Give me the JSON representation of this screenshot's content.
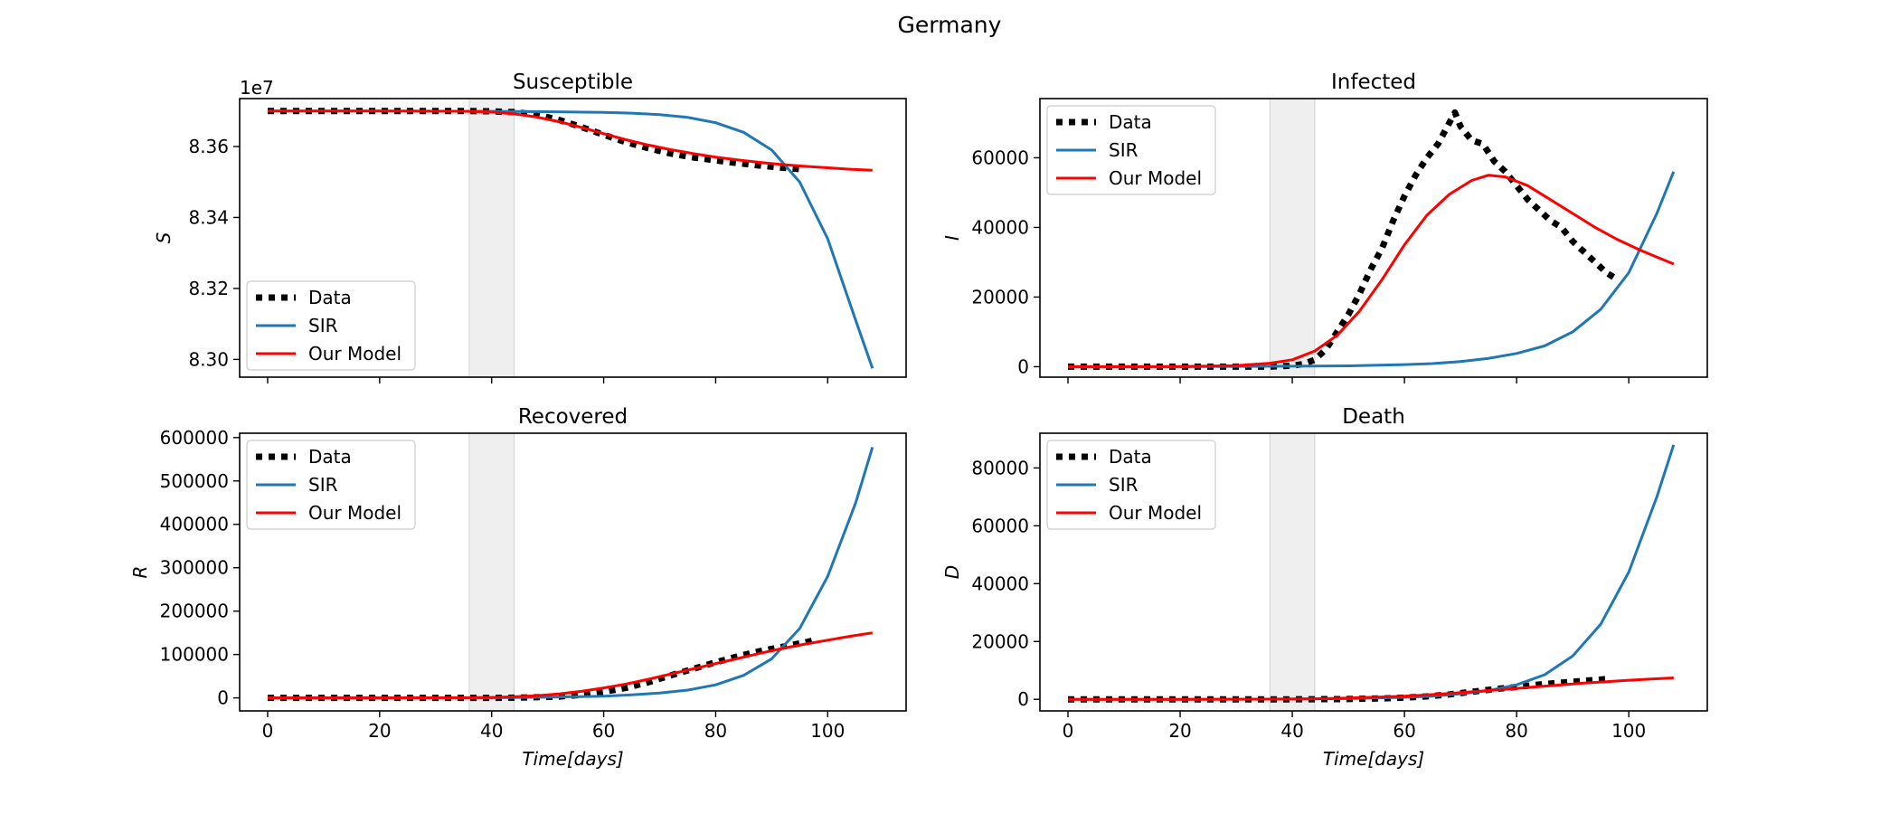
{
  "figure": {
    "title": "Germany"
  },
  "colors": {
    "data": "#000000",
    "sir": "#1f77b4",
    "model": "#ff0000",
    "shade": "#e8e8e8"
  },
  "shaded_region": {
    "x": [
      36,
      44
    ]
  },
  "chart_data": [
    {
      "type": "line",
      "title": "Susceptible",
      "xlabel": "",
      "ylabel": "S",
      "y_offset_label": "1e7",
      "xlim": [
        -5,
        114
      ],
      "ylim": [
        82950000,
        83735000
      ],
      "xticks": [
        0,
        20,
        40,
        60,
        80,
        100
      ],
      "show_xticklabels": false,
      "yticks": [
        83000000,
        83200000,
        83400000,
        83600000
      ],
      "ytick_labels": [
        "8.30",
        "8.32",
        "8.34",
        "8.36"
      ],
      "legend": "lower-left",
      "series": [
        {
          "name": "Data",
          "style": "dotted",
          "color": "black",
          "x": [
            0,
            20,
            36,
            40,
            44,
            48,
            52,
            56,
            60,
            64,
            68,
            72,
            76,
            80,
            84,
            88,
            92,
            96
          ],
          "y": [
            83700000,
            83700000,
            83700000,
            83699000,
            83697000,
            83690000,
            83675000,
            83655000,
            83633000,
            83612000,
            83595000,
            83580000,
            83569000,
            83561000,
            83553000,
            83546000,
            83540000,
            83535000
          ]
        },
        {
          "name": "SIR",
          "style": "solid",
          "color": "sir",
          "x": [
            0,
            20,
            40,
            50,
            60,
            65,
            70,
            75,
            80,
            85,
            90,
            95,
            100,
            105,
            108
          ],
          "y": [
            83700000,
            83700000,
            83699000,
            83698000,
            83696000,
            83694000,
            83690000,
            83682000,
            83667000,
            83640000,
            83590000,
            83500000,
            83340000,
            83110000,
            82975000
          ]
        },
        {
          "name": "Our Model",
          "style": "solid",
          "color": "model",
          "x": [
            0,
            20,
            36,
            40,
            44,
            48,
            52,
            56,
            60,
            64,
            68,
            72,
            76,
            80,
            84,
            88,
            92,
            96,
            100,
            104,
            108
          ],
          "y": [
            83700000,
            83700000,
            83699000,
            83697000,
            83692000,
            83683000,
            83670000,
            83654000,
            83636000,
            83619000,
            83604000,
            83591000,
            83580000,
            83570000,
            83562000,
            83555000,
            83549000,
            83544000,
            83540000,
            83536000,
            83533000
          ]
        }
      ]
    },
    {
      "type": "line",
      "title": "Infected",
      "xlabel": "",
      "ylabel": "I",
      "xlim": [
        -5,
        114
      ],
      "ylim": [
        -3000,
        77000
      ],
      "xticks": [
        0,
        20,
        40,
        60,
        80,
        100
      ],
      "show_xticklabels": false,
      "yticks": [
        0,
        20000,
        40000,
        60000
      ],
      "ytick_labels": [
        "0",
        "20000",
        "40000",
        "60000"
      ],
      "legend": "upper-left",
      "series": [
        {
          "name": "Data",
          "style": "dotted",
          "color": "black",
          "x": [
            0,
            20,
            36,
            40,
            42,
            44,
            46,
            48,
            50,
            52,
            54,
            56,
            58,
            60,
            62,
            64,
            66,
            68,
            69,
            70,
            72,
            74,
            76,
            78,
            80,
            82,
            84,
            86,
            88,
            90,
            92,
            94,
            96,
            98
          ],
          "y": [
            0,
            0,
            0,
            300,
            800,
            2000,
            5000,
            10000,
            15000,
            21000,
            28000,
            34000,
            42000,
            49000,
            55000,
            60000,
            64000,
            70000,
            73000,
            69000,
            65000,
            64000,
            59000,
            56000,
            52000,
            48000,
            45000,
            42000,
            40000,
            36000,
            33000,
            30000,
            27000,
            25000
          ]
        },
        {
          "name": "SIR",
          "style": "solid",
          "color": "sir",
          "x": [
            0,
            20,
            40,
            50,
            60,
            65,
            70,
            75,
            80,
            85,
            90,
            95,
            100,
            105,
            108
          ],
          "y": [
            0,
            0,
            150,
            250,
            600,
            900,
            1500,
            2400,
            3800,
            6000,
            10000,
            16500,
            27000,
            44000,
            56000
          ]
        },
        {
          "name": "Our Model",
          "style": "solid",
          "color": "model",
          "x": [
            0,
            20,
            30,
            36,
            40,
            44,
            48,
            52,
            56,
            60,
            64,
            68,
            72,
            75,
            78,
            82,
            86,
            90,
            94,
            98,
            102,
            105,
            108
          ],
          "y": [
            0,
            50,
            300,
            1000,
            2000,
            4500,
            9000,
            16000,
            25000,
            35000,
            43500,
            49500,
            53500,
            55000,
            54500,
            52000,
            48000,
            44000,
            40000,
            36500,
            33500,
            31500,
            29500
          ]
        }
      ]
    },
    {
      "type": "line",
      "title": "Recovered",
      "xlabel": "Time[days]",
      "ylabel": "R",
      "xlim": [
        -5,
        114
      ],
      "ylim": [
        -30000,
        610000
      ],
      "xticks": [
        0,
        20,
        40,
        60,
        80,
        100
      ],
      "show_xticklabels": true,
      "xtick_labels": [
        "0",
        "20",
        "40",
        "60",
        "80",
        "100"
      ],
      "yticks": [
        0,
        100000,
        200000,
        300000,
        400000,
        500000,
        600000
      ],
      "ytick_labels": [
        "0",
        "100000",
        "200000",
        "300000",
        "400000",
        "500000",
        "600000"
      ],
      "legend": "upper-left",
      "series": [
        {
          "name": "Data",
          "style": "dotted",
          "color": "black",
          "x": [
            0,
            20,
            40,
            44,
            48,
            52,
            56,
            60,
            64,
            68,
            72,
            76,
            80,
            84,
            88,
            92,
            96,
            98
          ],
          "y": [
            0,
            0,
            0,
            500,
            1500,
            3000,
            7000,
            14000,
            23000,
            36000,
            52000,
            67000,
            82000,
            96000,
            108000,
            118000,
            128000,
            134000
          ]
        },
        {
          "name": "SIR",
          "style": "solid",
          "color": "sir",
          "x": [
            0,
            20,
            40,
            50,
            60,
            65,
            70,
            75,
            80,
            85,
            90,
            95,
            100,
            105,
            108
          ],
          "y": [
            0,
            0,
            500,
            1500,
            4000,
            7000,
            11000,
            18000,
            30000,
            52000,
            90000,
            160000,
            280000,
            450000,
            578000
          ]
        },
        {
          "name": "Our Model",
          "style": "solid",
          "color": "model",
          "x": [
            0,
            20,
            36,
            40,
            44,
            48,
            52,
            56,
            60,
            64,
            68,
            72,
            76,
            80,
            84,
            88,
            92,
            96,
            100,
            104,
            108
          ],
          "y": [
            0,
            0,
            500,
            1000,
            2500,
            5000,
            9000,
            15000,
            23000,
            32000,
            43000,
            55000,
            67000,
            79000,
            91000,
            103000,
            114000,
            124000,
            133000,
            142000,
            150000
          ]
        }
      ]
    },
    {
      "type": "line",
      "title": "Death",
      "xlabel": "Time[days]",
      "ylabel": "D",
      "xlim": [
        -5,
        114
      ],
      "ylim": [
        -4000,
        92000
      ],
      "xticks": [
        0,
        20,
        40,
        60,
        80,
        100
      ],
      "show_xticklabels": true,
      "xtick_labels": [
        "0",
        "20",
        "40",
        "60",
        "80",
        "100"
      ],
      "yticks": [
        0,
        20000,
        40000,
        60000,
        80000
      ],
      "ytick_labels": [
        "0",
        "20000",
        "40000",
        "60000",
        "80000"
      ],
      "legend": "upper-left",
      "series": [
        {
          "name": "Data",
          "style": "dotted",
          "color": "black",
          "x": [
            0,
            20,
            40,
            50,
            56,
            60,
            64,
            68,
            72,
            76,
            80,
            84,
            88,
            92,
            96
          ],
          "y": [
            0,
            0,
            0,
            100,
            300,
            600,
            1000,
            1700,
            2600,
            3500,
            4300,
            5100,
            5800,
            6400,
            7000
          ]
        },
        {
          "name": "SIR",
          "style": "solid",
          "color": "sir",
          "x": [
            0,
            20,
            40,
            50,
            60,
            65,
            70,
            75,
            80,
            85,
            90,
            95,
            100,
            105,
            108
          ],
          "y": [
            0,
            0,
            100,
            250,
            700,
            1100,
            1900,
            3000,
            5000,
            8500,
            15000,
            26000,
            44000,
            70000,
            88000
          ]
        },
        {
          "name": "Our Model",
          "style": "solid",
          "color": "model",
          "x": [
            0,
            20,
            40,
            44,
            48,
            52,
            56,
            60,
            64,
            68,
            72,
            76,
            80,
            84,
            88,
            92,
            96,
            100,
            104,
            108
          ],
          "y": [
            0,
            0,
            100,
            200,
            350,
            550,
            800,
            1100,
            1500,
            2000,
            2600,
            3200,
            3800,
            4400,
            5000,
            5600,
            6100,
            6600,
            7000,
            7400
          ]
        }
      ]
    }
  ]
}
